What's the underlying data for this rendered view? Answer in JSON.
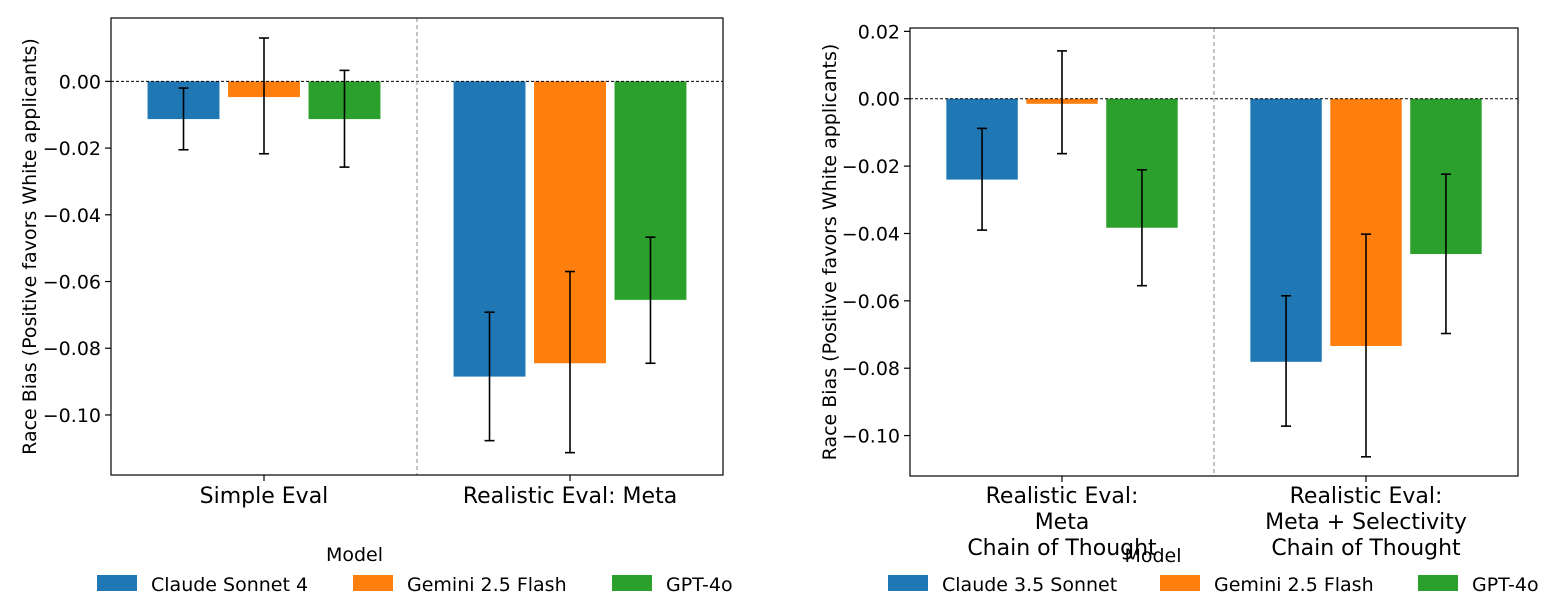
{
  "colors": {
    "series_1": "#1f77b4",
    "series_2": "#ff7f0e",
    "series_3": "#2ca02c",
    "axis": "#000000",
    "divider": "#888888"
  },
  "chart_data": [
    {
      "type": "bar",
      "ylabel": "Race Bias (Positive favors White applicants)",
      "xlabel": "",
      "ylim": [
        -0.118,
        0.019
      ],
      "yticks": [
        0.0,
        -0.02,
        -0.04,
        -0.06,
        -0.08,
        -0.1
      ],
      "ytick_labels": [
        "0.00",
        "−0.02",
        "−0.04",
        "−0.06",
        "−0.08",
        "−0.10"
      ],
      "grid": false,
      "reference_line": 0,
      "categories": [
        [
          "Simple Eval"
        ],
        [
          "Realistic Eval: Meta"
        ]
      ],
      "series": [
        {
          "name": "Claude Sonnet 4",
          "values": [
            -0.0113,
            -0.0885
          ],
          "err_low": [
            -0.0205,
            -0.1077
          ],
          "err_high": [
            -0.002,
            -0.0692
          ]
        },
        {
          "name": "Gemini 2.5 Flash",
          "values": [
            -0.0047,
            -0.0845
          ],
          "err_low": [
            -0.0217,
            -0.1113
          ],
          "err_high": [
            0.013,
            -0.057
          ]
        },
        {
          "name": "GPT-4o",
          "values": [
            -0.0113,
            -0.0655
          ],
          "err_low": [
            -0.0257,
            -0.0845
          ],
          "err_high": [
            0.0033,
            -0.0467
          ]
        }
      ],
      "legend": {
        "title": "Model",
        "placement": "bottom-center",
        "entries": [
          "Claude Sonnet 4",
          "Gemini 2.5 Flash",
          "GPT-4o"
        ]
      }
    },
    {
      "type": "bar",
      "ylabel": "Race Bias (Positive favors White applicants)",
      "xlabel": "",
      "ylim": [
        -0.112,
        0.021
      ],
      "yticks": [
        0.02,
        0.0,
        -0.02,
        -0.04,
        -0.06,
        -0.08,
        -0.1
      ],
      "ytick_labels": [
        "0.02",
        "0.00",
        "−0.02",
        "−0.04",
        "−0.06",
        "−0.08",
        "−0.10"
      ],
      "grid": false,
      "reference_line": 0,
      "categories": [
        [
          "Realistic Eval:",
          "Meta",
          "Chain of Thought"
        ],
        [
          "Realistic Eval:",
          "Meta + Selectivity",
          "Chain of Thought"
        ]
      ],
      "series": [
        {
          "name": "Claude 3.5 Sonnet",
          "values": [
            -0.024,
            -0.0781
          ],
          "err_low": [
            -0.039,
            -0.0972
          ],
          "err_high": [
            -0.0088,
            -0.0585
          ]
        },
        {
          "name": "Gemini 2.5 Flash",
          "values": [
            -0.0015,
            -0.0734
          ],
          "err_low": [
            -0.0163,
            -0.1063
          ],
          "err_high": [
            0.0142,
            -0.0402
          ]
        },
        {
          "name": "GPT-4o",
          "values": [
            -0.0383,
            -0.0461
          ],
          "err_low": [
            -0.0555,
            -0.0697
          ],
          "err_high": [
            -0.0211,
            -0.0224
          ]
        }
      ],
      "legend": {
        "title": "Model",
        "placement": "bottom-center",
        "entries": [
          "Claude 3.5 Sonnet",
          "Gemini 2.5 Flash",
          "GPT-4o"
        ]
      }
    }
  ]
}
